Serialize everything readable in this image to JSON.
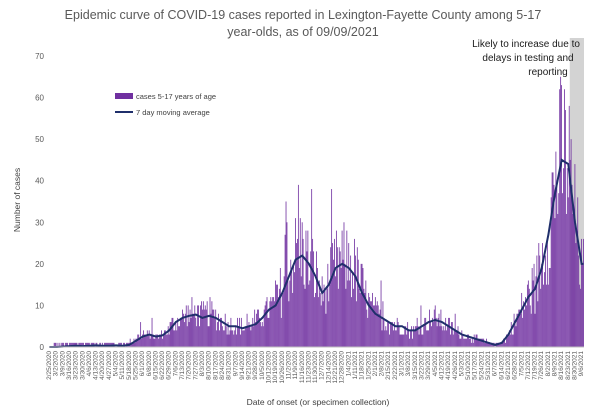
{
  "chart_data": {
    "type": "bar",
    "title_lines": [
      "Epidemic curve of COVID-19 cases reported in Lexington-Fayette County among 5-17",
      "year-olds, as of 09/09/2021"
    ],
    "xlabel": "Date of onset (or specimen collection)",
    "ylabel": "Number of cases",
    "ylim": [
      0,
      70
    ],
    "yticks": [
      0,
      10,
      20,
      30,
      40,
      50,
      60,
      70
    ],
    "x_start": "2020-02-25",
    "x_end": "2021-09-09",
    "grid": false,
    "legend_position": "upper-left",
    "colors": {
      "bars": "#7030a0",
      "line": "#1f2f6b",
      "shade": "#d3d3d3",
      "axis": "#bfbfbf"
    },
    "annotation": {
      "lines": [
        "Likely to increase due to",
        "delays in testing and",
        "reporting"
      ],
      "shaded_from": "2021-08-26",
      "shaded_to": "2021-09-09"
    },
    "series": [
      {
        "name": "cases 5-17 years of age",
        "kind": "bar"
      },
      {
        "name": "7 day moving average",
        "kind": "line"
      }
    ],
    "xtick_labels": [
      "2/25/2020",
      "3/2/2020",
      "3/9/2020",
      "3/16/2020",
      "3/23/2020",
      "3/30/2020",
      "4/6/2020",
      "4/13/2020",
      "4/20/2020",
      "4/27/2020",
      "5/4/2020",
      "5/11/2020",
      "5/18/2020",
      "5/25/2020",
      "6/1/2020",
      "6/8/2020",
      "6/15/2020",
      "6/22/2020",
      "6/29/2020",
      "7/6/2020",
      "7/13/2020",
      "7/20/2020",
      "7/27/2020",
      "8/3/2020",
      "8/10/2020",
      "8/17/2020",
      "8/24/2020",
      "8/31/2020",
      "9/7/2020",
      "9/14/2020",
      "9/21/2020",
      "9/28/2020",
      "10/5/2020",
      "10/12/2020",
      "10/19/2020",
      "10/26/2020",
      "11/2/2020",
      "11/9/2020",
      "11/16/2020",
      "11/23/2020",
      "11/30/2020",
      "12/7/2020",
      "12/14/2020",
      "12/21/2020",
      "12/28/2020",
      "1/4/2021",
      "1/11/2021",
      "1/18/2021",
      "1/25/2021",
      "2/1/2021",
      "2/8/2021",
      "2/15/2021",
      "2/22/2021",
      "3/1/2021",
      "3/8/2021",
      "3/15/2021",
      "3/22/2021",
      "3/29/2021",
      "4/5/2021",
      "4/12/2021",
      "4/19/2021",
      "4/26/2021",
      "5/3/2021",
      "5/10/2021",
      "5/17/2021",
      "5/24/2021",
      "5/31/2021",
      "6/7/2021",
      "6/14/2021",
      "6/21/2021",
      "6/28/2021",
      "7/5/2021",
      "7/12/2021",
      "7/19/2021",
      "7/26/2021",
      "8/2/2021",
      "8/9/2021",
      "8/16/2021",
      "8/23/2021",
      "8/30/2021",
      "9/6/2021"
    ],
    "weekly_case_levels": [
      0.2,
      0.5,
      0.6,
      0.5,
      0.6,
      0.7,
      0.8,
      0.6,
      0.6,
      0.7,
      0.5,
      0.6,
      1,
      2,
      3,
      3,
      2.5,
      3,
      4,
      6,
      7,
      8,
      8,
      7,
      8,
      7,
      6,
      5,
      5,
      5,
      5,
      6,
      7,
      9,
      10,
      14,
      18,
      22,
      23,
      20,
      17,
      12,
      15,
      19,
      20,
      20,
      18,
      14,
      10,
      8,
      7,
      6,
      5,
      5,
      4,
      4,
      5,
      6,
      7,
      6,
      5,
      4,
      3,
      2.5,
      2,
      1.5,
      1,
      0.8,
      1,
      3,
      6,
      9,
      12,
      14,
      20,
      28,
      38,
      45,
      44,
      30,
      18
    ],
    "moving_average": [
      0,
      0,
      0.1,
      0.2,
      0.3,
      0.2,
      0.3,
      0.4,
      0.3,
      0.3,
      0.4,
      0.3,
      0.5,
      1.5,
      2.5,
      3,
      2.5,
      2.8,
      4,
      6,
      7,
      7.5,
      7.8,
      7,
      7.5,
      7,
      6,
      5,
      5,
      4.5,
      5,
      5.5,
      7,
      9,
      10,
      13,
      17,
      21,
      22,
      20,
      17,
      13,
      15,
      19,
      20,
      19,
      17,
      13,
      10,
      8,
      7,
      6,
      5,
      5,
      4,
      4,
      5,
      6,
      6.5,
      6,
      5,
      4,
      3,
      2.5,
      2,
      1.5,
      1,
      0.5,
      1,
      3,
      6,
      9,
      12,
      14,
      19,
      27,
      37,
      45,
      44,
      30,
      20
    ]
  }
}
